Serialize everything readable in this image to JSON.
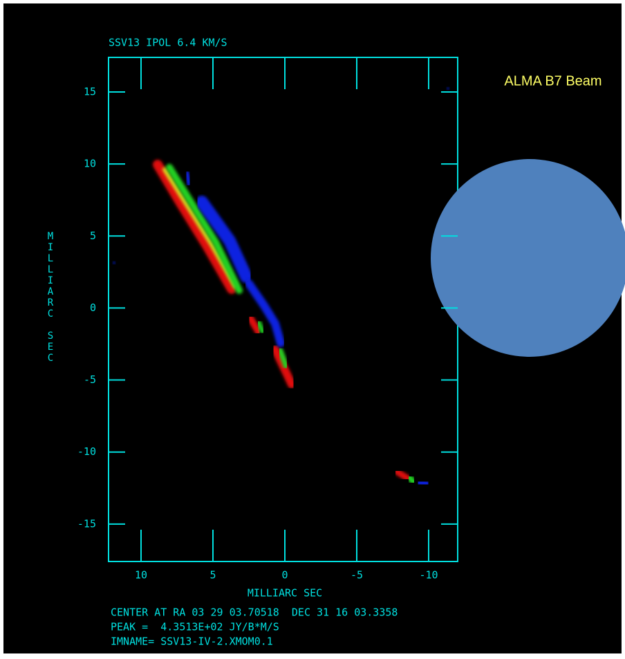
{
  "chart_data": {
    "type": "image",
    "title": "SSV13 IPOL  6.4 KM/S",
    "xlabel": "MILLIARC SEC",
    "ylabel": "MILLIARC SEC",
    "xlim": [
      12.26,
      -12.02
    ],
    "ylim": [
      -17.6,
      17.4
    ],
    "xticks": [
      10,
      5,
      0,
      -5,
      -10
    ],
    "yticks": [
      15,
      10,
      5,
      0,
      -5,
      -10,
      -15
    ],
    "color": "#00e0e0",
    "footer": [
      "CENTER AT RA 03 29 03.70518  DEC 31 16 03.3358",
      "PEAK =  4.3513E+02 JY/B*M/S",
      "IMNAME= SSV13-IV-2.XMOM0.1"
    ],
    "annotation": "ALMA B7 Beam"
  }
}
